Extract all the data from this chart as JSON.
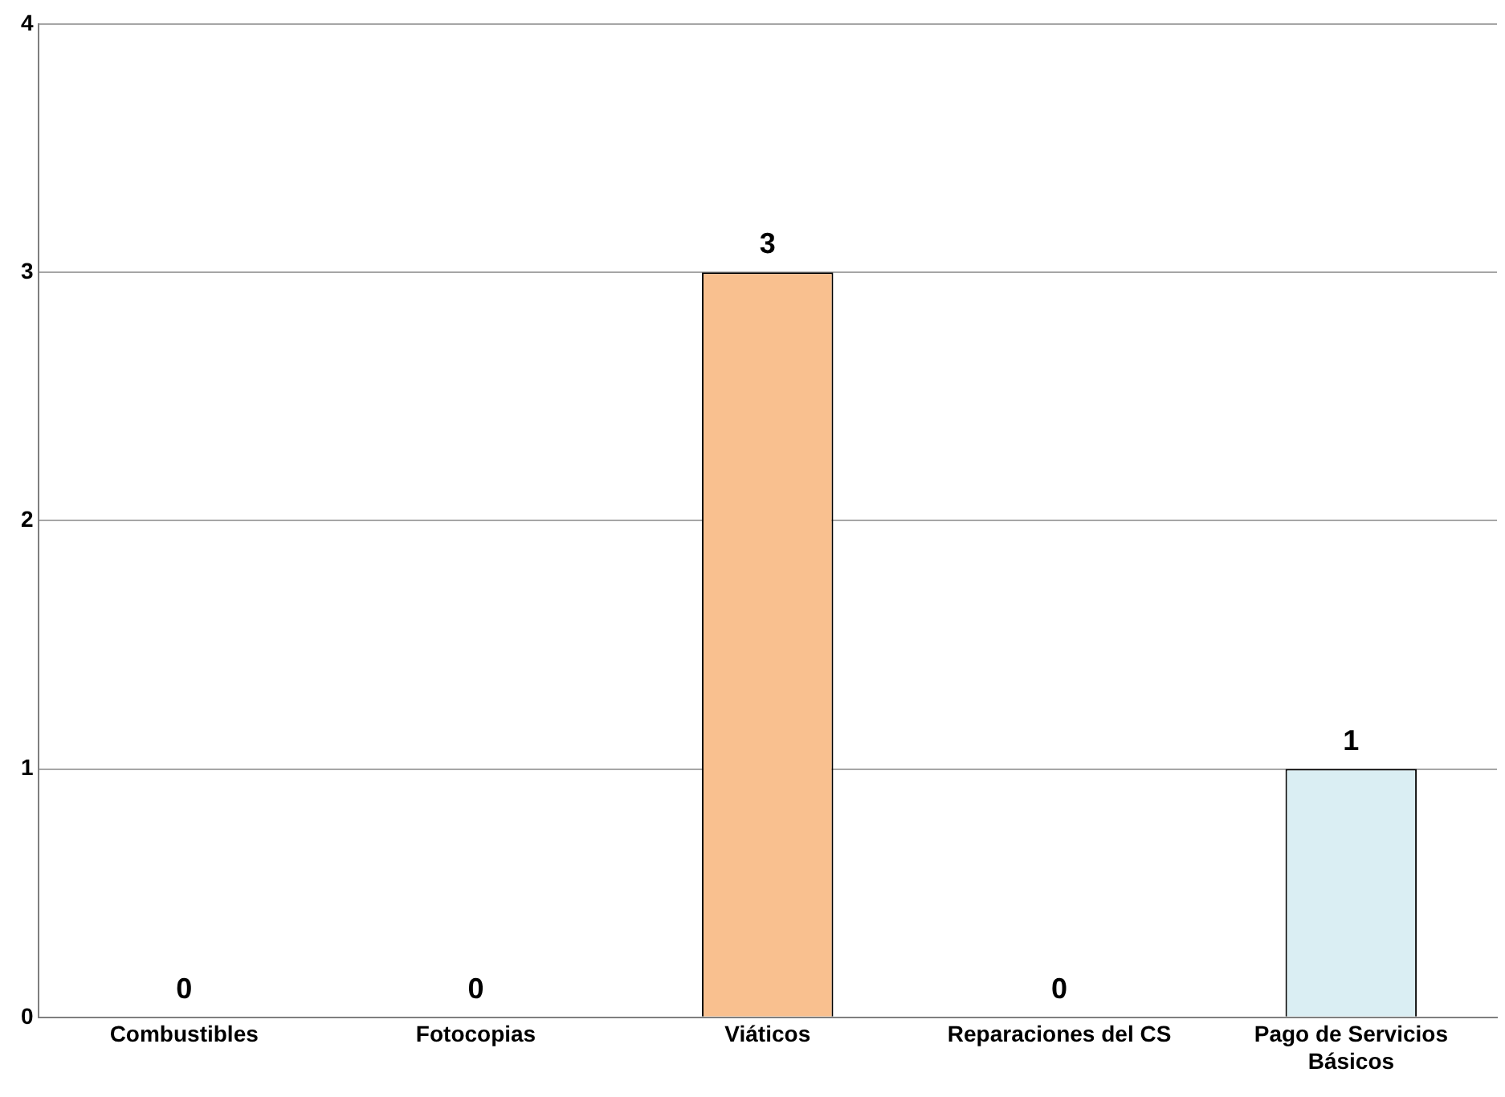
{
  "chart_data": {
    "type": "bar",
    "categories": [
      "Combustibles",
      "Fotocopias",
      "Viáticos",
      "Reparaciones del CS",
      "Pago de Servicios Básicos"
    ],
    "values": [
      0,
      0,
      3,
      0,
      1
    ],
    "colors": [
      "#f9c08f",
      "#f9c08f",
      "#f9c08f",
      "#f9c08f",
      "#daeef3"
    ],
    "ylim": [
      0,
      4
    ],
    "yticks": [
      0,
      1,
      2,
      3,
      4
    ],
    "grid": "y",
    "data_labels": true
  }
}
